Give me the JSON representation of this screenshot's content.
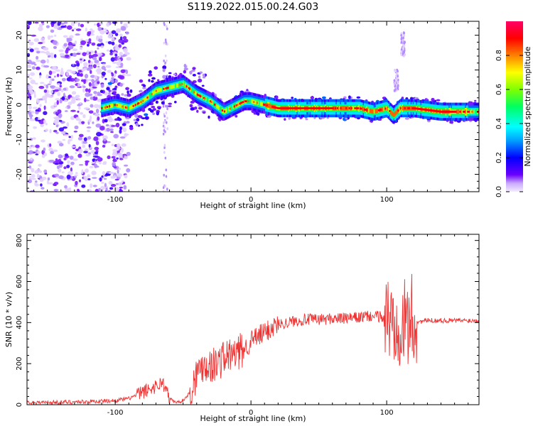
{
  "title": "S119.2022.015.00.24.G03",
  "chart_data": [
    {
      "type": "heatmap",
      "xlabel": "Height of straight line (km)",
      "ylabel": "Frequency (Hz)",
      "xlim": [
        -165,
        168
      ],
      "ylim": [
        -25,
        24
      ],
      "xticks": [
        -100,
        0,
        100
      ],
      "yticks": [
        -20,
        -10,
        0,
        10,
        20
      ],
      "grid": false,
      "ridge": {
        "x": [
          -110,
          -100,
          -90,
          -80,
          -70,
          -60,
          -50,
          -40,
          -30,
          -20,
          -15,
          -10,
          -5,
          0,
          10,
          20,
          40,
          60,
          80,
          90,
          100,
          105,
          110,
          120,
          140,
          168
        ],
        "y": [
          -1,
          0,
          -1,
          1,
          4,
          5,
          6,
          3,
          1,
          -2,
          -1,
          0,
          1,
          1,
          0,
          -1,
          -1,
          -1,
          -1,
          -2,
          -1,
          -3,
          -1,
          -1,
          -2,
          -2
        ]
      }
    },
    {
      "type": "line",
      "xlabel": "Height of straight line (km)",
      "ylabel": "SNR (10 * v/v)",
      "xlim": [
        -165,
        168
      ],
      "ylim": [
        0,
        830
      ],
      "xticks": [
        -100,
        0,
        100
      ],
      "yticks": [
        0,
        200,
        400,
        600,
        800
      ],
      "grid": false,
      "color": "#ee3333",
      "series": [
        {
          "x": [
            -165,
            -140,
            -120,
            -100,
            -90,
            -80,
            -70,
            -65,
            -60,
            -55,
            -50,
            -45,
            -40,
            -35,
            -30,
            -25,
            -20,
            -15,
            -10,
            -5,
            0,
            5,
            10,
            15,
            20,
            30,
            40,
            50,
            60,
            70,
            80,
            85,
            90,
            95,
            100,
            105,
            108,
            110,
            112,
            115,
            118,
            120,
            125,
            130,
            140,
            150,
            160,
            168
          ],
          "y": [
            10,
            12,
            15,
            20,
            30,
            60,
            90,
            110,
            30,
            10,
            20,
            60,
            150,
            200,
            190,
            200,
            230,
            240,
            250,
            270,
            310,
            330,
            350,
            375,
            390,
            405,
            415,
            415,
            420,
            420,
            425,
            430,
            430,
            430,
            420,
            400,
            450,
            400,
            380,
            400,
            420,
            400,
            405,
            410,
            410,
            410,
            410,
            410
          ]
        }
      ]
    }
  ],
  "colorbar": {
    "label": "Normalized spectral amplitude",
    "ticks": [
      "0.0",
      "0.2",
      "0.4",
      "0.6",
      "0.8"
    ]
  }
}
